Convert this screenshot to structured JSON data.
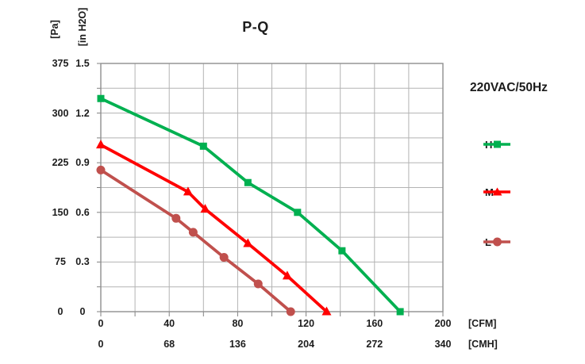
{
  "title": "P-Q",
  "voltage_label": "220VAC/50Hz",
  "axes": {
    "y_left_unit": "[Pa]",
    "y_right_unit": "[in H2O]",
    "x_unit_primary": "[CFM]",
    "x_unit_secondary": "[CMH]",
    "pa_ticks": [
      "0",
      "75",
      "150",
      "225",
      "300",
      "375"
    ],
    "inh2o_ticks": [
      "0",
      "0.3",
      "0.6",
      "0.9",
      "1.2",
      "1.5"
    ],
    "cfm_ticks": [
      "0",
      "40",
      "80",
      "120",
      "160",
      "200"
    ],
    "cmh_ticks": [
      "0",
      "68",
      "136",
      "204",
      "272",
      "340"
    ]
  },
  "chart_data": {
    "type": "line",
    "title": "P-Q",
    "xlabel": "[CFM] / [CMH]",
    "ylabel": "[Pa] / [in H2O]",
    "x_range_cfm": [
      0,
      200
    ],
    "x_range_cmh": [
      0,
      340
    ],
    "y_range_pa": [
      0,
      375
    ],
    "y_range_inh2o": [
      0,
      1.5
    ],
    "grid": true,
    "grid_step_cfm": 20,
    "grid_step_pa": 37.5,
    "legend_position": "right",
    "grid_color": "#b3b3b3",
    "border_color": "#8f8f8f",
    "tick_color": "#808080",
    "series": [
      {
        "name": "H",
        "color": "#00B050",
        "marker": "square",
        "points_cfm_pa": [
          [
            0,
            322
          ],
          [
            60,
            250
          ],
          [
            86,
            195
          ],
          [
            115,
            150
          ],
          [
            141,
            92
          ],
          [
            175,
            0
          ]
        ]
      },
      {
        "name": "M",
        "color": "#FF0000",
        "marker": "triangle",
        "points_cfm_pa": [
          [
            0,
            252
          ],
          [
            51,
            181
          ],
          [
            61,
            155
          ],
          [
            86,
            103
          ],
          [
            109,
            54
          ],
          [
            132,
            0
          ]
        ]
      },
      {
        "name": "L",
        "color": "#C0504D",
        "marker": "circle",
        "points_cfm_pa": [
          [
            0,
            214
          ],
          [
            44,
            141
          ],
          [
            54,
            120
          ],
          [
            72,
            82
          ],
          [
            92,
            42
          ],
          [
            111,
            0
          ]
        ]
      }
    ]
  }
}
